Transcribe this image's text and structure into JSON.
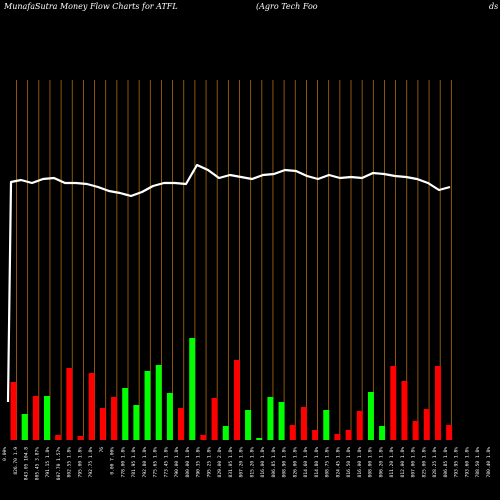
{
  "header": {
    "title": "MunafaSutra  Money Flow  Charts for ATFL",
    "subtitle": "(Agro   Tech Foo",
    "right_fragment": "ds"
  },
  "colors": {
    "background": "#000000",
    "grid": "#b06a10",
    "line": "#ffffff",
    "up": "#00ff00",
    "down": "#ff0000"
  },
  "chart_data": {
    "type": "bar",
    "grid": true,
    "x_tick_labels": [
      "0.00%",
      "826.70 1.9",
      "843.05 104.8",
      "805.45 3.87%",
      "791.15 1.8%",
      "807.70 1.57%",
      "802.55 1.8%",
      "795.00 1.8%",
      "792.75 1.8%",
      "76",
      "0.00 7.00%",
      "778.00 1.8%",
      "781.95 1.8%",
      "792.80 1.8%",
      "775.65 1.8%",
      "773.45 1.8%",
      "790.00 1.8%",
      "800.00 1.8%",
      "790.35 1.8%",
      "795.25 1.8%",
      "829.00 2.8%",
      "831.05 1.8%",
      "807.20 1.8%",
      "815.20 1.8%",
      "816.00 1.8%",
      "806.85 1.8%",
      "808.90 1.8%",
      "826.00 1.8%",
      "814.60 1.8%",
      "814.80 1.8%",
      "808.75 1.8%",
      "824.45 1.8%",
      "816.50 1.8%",
      "816.00 1.8%",
      "808.00 1.8%",
      "806.20 1.8%",
      "811.20 1.8%",
      "812.00 1.8%",
      "807.00 1.8%",
      "825.00 1.8%",
      "828.25 1.8%",
      "806.85 1.8%",
      "793.95 1.8%",
      "793.60 1.8%",
      "788.50 1.8%",
      "780.40 1.8%"
    ],
    "bars": [
      {
        "value": 58,
        "color": "red"
      },
      {
        "value": 26,
        "color": "green"
      },
      {
        "value": 44,
        "color": "red"
      },
      {
        "value": 44,
        "color": "green"
      },
      {
        "value": 5,
        "color": "red"
      },
      {
        "value": 72,
        "color": "red"
      },
      {
        "value": 4,
        "color": "red"
      },
      {
        "value": 67,
        "color": "red"
      },
      {
        "value": 32,
        "color": "red"
      },
      {
        "value": 43,
        "color": "red"
      },
      {
        "value": 52,
        "color": "green"
      },
      {
        "value": 35,
        "color": "green"
      },
      {
        "value": 69,
        "color": "green"
      },
      {
        "value": 75,
        "color": "green"
      },
      {
        "value": 47,
        "color": "green"
      },
      {
        "value": 32,
        "color": "red"
      },
      {
        "value": 102,
        "color": "green"
      },
      {
        "value": 5,
        "color": "red"
      },
      {
        "value": 42,
        "color": "red"
      },
      {
        "value": 14,
        "color": "green"
      },
      {
        "value": 80,
        "color": "red"
      },
      {
        "value": 30,
        "color": "green"
      },
      {
        "value": 2,
        "color": "green"
      },
      {
        "value": 43,
        "color": "green"
      },
      {
        "value": 38,
        "color": "green"
      },
      {
        "value": 15,
        "color": "red"
      },
      {
        "value": 33,
        "color": "red"
      },
      {
        "value": 10,
        "color": "red"
      },
      {
        "value": 30,
        "color": "green"
      },
      {
        "value": 6,
        "color": "red"
      },
      {
        "value": 10,
        "color": "red"
      },
      {
        "value": 29,
        "color": "red"
      },
      {
        "value": 48,
        "color": "green"
      },
      {
        "value": 14,
        "color": "green"
      },
      {
        "value": 74,
        "color": "red"
      },
      {
        "value": 59,
        "color": "red"
      },
      {
        "value": 19,
        "color": "red"
      },
      {
        "value": 31,
        "color": "red"
      },
      {
        "value": 74,
        "color": "red"
      },
      {
        "value": 15,
        "color": "red"
      }
    ],
    "line_values": [
      38,
      258,
      260,
      257,
      261,
      262,
      257,
      257,
      256,
      253,
      249,
      247,
      244,
      248,
      254,
      257,
      257,
      256,
      275,
      270,
      262,
      265,
      263,
      261,
      265,
      266,
      270,
      269,
      264,
      261,
      265,
      262,
      263,
      262,
      267,
      266,
      264,
      263,
      261,
      257,
      250,
      253
    ]
  }
}
